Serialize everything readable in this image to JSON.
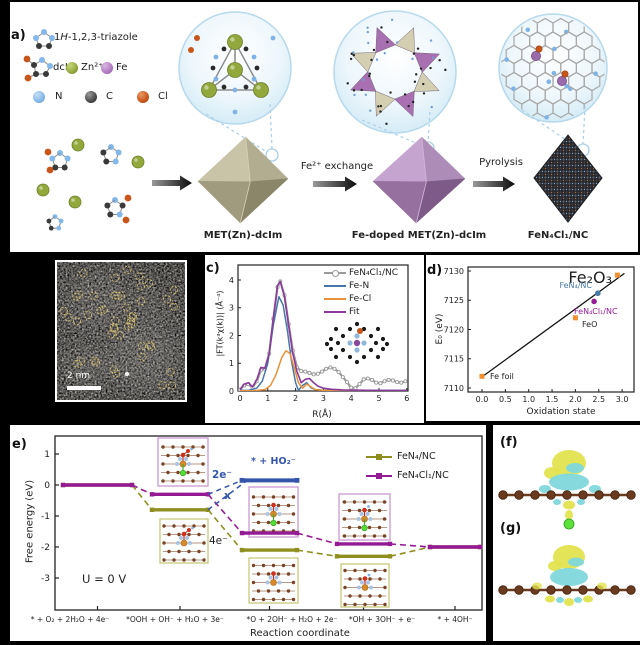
{
  "panel_a": {
    "label": "a)",
    "triazole_pre": "1",
    "triazole_h": "H",
    "triazole_rest": "-1,2,3-triazole",
    "dcim": "dcIm",
    "zn": "Zn²⁺",
    "fe": "Fe",
    "n": "N",
    "c": "C",
    "cl": "Cl",
    "product1": "MET(Zn)-dcIm",
    "arrow2_label": "Fe²⁺ exchange",
    "product2": "Fe-doped MET(Zn)-dcIm",
    "arrow3_label": "Pyrolysis",
    "product3": "FeN₄Cl₁/NC"
  },
  "panel_b": {
    "scalebar": "2 nm"
  },
  "panel_c": {
    "label": "c)",
    "ylabel": "|FT(k³χ(k))| (Å⁻⁴)",
    "xlabel": "R(Å)",
    "yticks": [
      "0",
      "1",
      "2",
      "3",
      "4"
    ],
    "xticks": [
      "0",
      "1",
      "2",
      "3",
      "4",
      "5",
      "6"
    ],
    "legend": [
      {
        "label": "FeN₄Cl₁/NC",
        "color": "#9a9a9a"
      },
      {
        "label": "Fe-N",
        "color": "#4878a8"
      },
      {
        "label": "Fe-Cl",
        "color": "#e8923a"
      },
      {
        "label": "Fit",
        "color": "#8b3a9b"
      }
    ]
  },
  "panel_d": {
    "label": "d)",
    "ylabel": "E₀ (eV)",
    "xlabel": "Oxidation state",
    "yticks": [
      "7110",
      "7115",
      "7120",
      "7125",
      "7130"
    ],
    "xticks": [
      "0.0",
      "0.5",
      "1.0",
      "1.5",
      "2.0",
      "2.5",
      "3.0"
    ],
    "point_labels": {
      "fe_foil": "Fe foil",
      "feo": "FeO",
      "fe2o3": "Fe₂O₃",
      "fen4nc": "FeN₄/NC",
      "fen4cl1nc": "FeN₄Cl₁/NC"
    }
  },
  "panel_e": {
    "label": "e)",
    "ylabel": "Free energy (eV)",
    "xlabel": "Reaction coordinate",
    "yticks": [
      "1",
      "0",
      "-1",
      "-2",
      "-3"
    ],
    "steps": [
      "* + O₂ + 2H₂O + 4e⁻",
      "*OOH + OH⁻ + H₂O + 3e⁻",
      "*O + 2OH⁻ + H₂O + 2e⁻",
      "*OH + 3OH⁻ + e⁻",
      "* + 4OH⁻"
    ],
    "u_label": "U = 0 V",
    "two_e": "2e⁻",
    "cross": "x",
    "ho2": "* + HO₂⁻",
    "four_e": "4e⁻",
    "legend": [
      {
        "label": "FeN₄/NC",
        "color": "#8f8f1f"
      },
      {
        "label": "FeN₄Cl₁/NC",
        "color": "#951b95"
      }
    ]
  },
  "panel_f": {
    "label": "(f)"
  },
  "panel_g": {
    "label": "(g)"
  },
  "chart_data": [
    {
      "type": "line",
      "title": "Fe K-edge FT-EXAFS fit of FeN4Cl1/NC",
      "xlabel": "R(Å)",
      "ylabel": "|FT(k³χ(k))| (Å⁻⁴)",
      "xlim": [
        0,
        6
      ],
      "ylim": [
        0,
        4.6
      ],
      "series": [
        {
          "name": "FeN₄Cl₁/NC",
          "color": "#9a9a9a",
          "width": 2.2,
          "marker": "circle",
          "x": [
            0,
            0.15,
            0.3,
            0.45,
            0.6,
            0.75,
            0.9,
            1.05,
            1.2,
            1.35,
            1.45,
            1.6,
            1.75,
            1.9,
            2.05,
            2.2,
            2.35,
            2.5,
            2.65,
            2.8,
            2.95,
            3.1,
            3.25,
            3.4,
            3.55,
            3.7,
            3.85,
            4.0,
            4.15,
            4.3,
            4.45,
            4.6,
            4.75,
            4.9,
            5.05,
            5.2,
            5.35,
            5.5,
            5.65,
            5.8,
            5.95
          ],
          "y": [
            0.05,
            0.2,
            0.25,
            0.12,
            0.35,
            0.75,
            0.8,
            1.35,
            2.6,
            3.75,
            3.95,
            3.45,
            2.4,
            1.45,
            0.85,
            0.72,
            0.7,
            0.65,
            0.6,
            0.62,
            0.7,
            0.8,
            0.85,
            0.8,
            0.68,
            0.5,
            0.32,
            0.12,
            0.1,
            0.25,
            0.42,
            0.45,
            0.4,
            0.3,
            0.28,
            0.35,
            0.4,
            0.38,
            0.32,
            0.3,
            0.35
          ]
        },
        {
          "name": "Fe-N",
          "color": "#4878a8",
          "width": 1.5,
          "x": [
            0,
            0.3,
            0.6,
            0.8,
            1.0,
            1.2,
            1.4,
            1.55,
            1.7,
            1.85,
            2.0,
            2.1,
            2.25,
            2.4,
            2.55,
            2.7,
            3.0,
            4.0,
            5.0,
            6.0
          ],
          "y": [
            0.02,
            0.02,
            0.1,
            0.35,
            1.0,
            2.4,
            3.4,
            3.1,
            2.2,
            1.1,
            0.3,
            0.02,
            0.2,
            0.3,
            0.12,
            0.05,
            0.03,
            0.02,
            0.02,
            0.02
          ]
        },
        {
          "name": "Fe-Cl",
          "color": "#e8923a",
          "width": 1.5,
          "x": [
            0,
            0.5,
            0.9,
            1.1,
            1.3,
            1.5,
            1.65,
            1.8,
            1.95,
            2.1,
            2.25,
            2.4,
            2.55,
            2.7,
            3.0,
            4.0,
            5.0,
            6.0
          ],
          "y": [
            0.01,
            0.01,
            0.05,
            0.2,
            0.6,
            1.2,
            1.45,
            1.35,
            0.85,
            0.3,
            0.1,
            0.25,
            0.15,
            0.05,
            0.02,
            0.01,
            0.01,
            0.01
          ]
        },
        {
          "name": "Fit",
          "color": "#8b3a9b",
          "width": 1.6,
          "x": [
            0,
            0.15,
            0.3,
            0.45,
            0.6,
            0.75,
            0.9,
            1.05,
            1.2,
            1.35,
            1.45,
            1.6,
            1.75,
            1.9,
            2.05,
            2.2,
            2.35,
            2.5,
            2.65,
            2.8,
            3.0,
            3.3,
            3.7,
            4.2,
            5.0,
            6.0
          ],
          "y": [
            0.05,
            0.25,
            0.3,
            0.15,
            0.4,
            0.85,
            0.82,
            1.35,
            2.65,
            3.8,
            3.95,
            3.4,
            2.35,
            1.35,
            0.7,
            0.3,
            0.42,
            0.45,
            0.3,
            0.18,
            0.1,
            0.06,
            0.04,
            0.03,
            0.02,
            0.02
          ]
        }
      ],
      "legend_position": "top-right"
    },
    {
      "type": "scatter",
      "title": "Fe K-edge absorption energy vs oxidation state",
      "xlabel": "Oxidation state",
      "ylabel": "E₀ (eV)",
      "xlim": [
        -0.3,
        3.3
      ],
      "ylim": [
        7109,
        7131
      ],
      "points": [
        {
          "label": "Fe foil",
          "x": 0.0,
          "y": 7112.0,
          "color": "#f09030",
          "marker": "square"
        },
        {
          "label": "FeO",
          "x": 2.0,
          "y": 7122.0,
          "color": "#f09030",
          "marker": "square"
        },
        {
          "label": "Fe₂O₃",
          "x": 2.9,
          "y": 7129.3,
          "color": "#f09030",
          "marker": "square"
        },
        {
          "label": "FeN₄/NC",
          "x": 2.48,
          "y": 7126.2,
          "color": "#4a7aa8",
          "marker": "circle"
        },
        {
          "label": "FeN₄Cl₁/NC",
          "x": 2.4,
          "y": 7124.8,
          "color": "#951b95",
          "marker": "circle"
        }
      ],
      "fit_line": {
        "x1": 0.0,
        "y1": 7111.9,
        "x2": 3.05,
        "y2": 7129.6,
        "color": "#111111"
      }
    },
    {
      "type": "step-diagram",
      "title": "ORR free energy diagram at U = 0 V",
      "xlabel": "Reaction coordinate",
      "ylabel": "Free energy (eV)",
      "categories": [
        "* + O₂ + 2H₂O + 4e⁻",
        "*OOH + OH⁻ + H₂O + 3e⁻",
        "*O + 2OH⁻ + H₂O + 2e⁻",
        "*OH + 3OH⁻ + e⁻",
        "* + 4OH⁻"
      ],
      "series": [
        {
          "name": "FeN₄/NC",
          "color": "#8f8f1f",
          "values": [
            0,
            -0.8,
            -2.1,
            -2.3,
            -2.0
          ]
        },
        {
          "name": "FeN₄Cl₁/NC",
          "color": "#951b95",
          "values": [
            0,
            -0.3,
            -1.55,
            -1.9,
            -2.0
          ]
        }
      ],
      "alt_2e_pathway": {
        "label": "* + HO₂⁻",
        "value": 0.15,
        "at_step": 2,
        "color": "#3355aa",
        "rejected": true
      },
      "ylim": [
        -4.0,
        1.5
      ]
    }
  ]
}
